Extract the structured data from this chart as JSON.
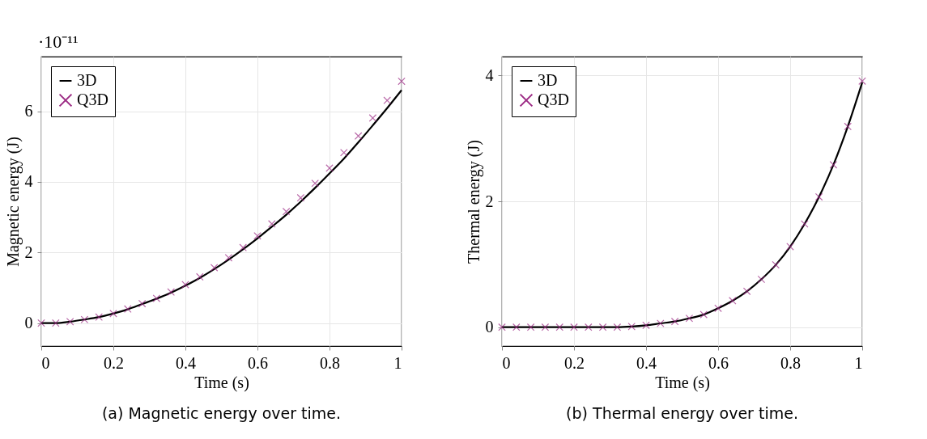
{
  "chart_data": [
    {
      "type": "line",
      "title": "(a) Magnetic energy over time.",
      "xlabel": "Time (s)",
      "ylabel": "Magnetic energy (J)",
      "annotations": [
        "·10⁻¹¹"
      ],
      "x": [
        0,
        0.04,
        0.08,
        0.12,
        0.16,
        0.2,
        0.24,
        0.28,
        0.32,
        0.36,
        0.4,
        0.44,
        0.48,
        0.52,
        0.56,
        0.6,
        0.64,
        0.68,
        0.72,
        0.76,
        0.8,
        0.84,
        0.88,
        0.92,
        0.96,
        1
      ],
      "series": [
        {
          "name": "3D",
          "color": "#000000",
          "type": "line",
          "values": [
            0,
            0,
            0.04,
            0.1,
            0.17,
            0.27,
            0.39,
            0.54,
            0.69,
            0.86,
            1.06,
            1.28,
            1.53,
            1.8,
            2.09,
            2.4,
            2.73,
            3.07,
            3.44,
            3.83,
            4.24,
            4.66,
            5.12,
            5.6,
            6.09,
            6.6
          ]
        },
        {
          "name": "Q3D",
          "color": "#9c2a84",
          "type": "scatter",
          "marker": "cross",
          "values": [
            0,
            0,
            0.04,
            0.1,
            0.17,
            0.27,
            0.4,
            0.55,
            0.7,
            0.88,
            1.09,
            1.31,
            1.57,
            1.85,
            2.14,
            2.47,
            2.81,
            3.16,
            3.55,
            3.96,
            4.39,
            4.83,
            5.3,
            5.81,
            6.31,
            6.85
          ]
        }
      ],
      "xlim": [
        0,
        1
      ],
      "xticks": [
        0,
        0.2,
        0.4,
        0.6,
        0.8,
        1
      ],
      "ylim": [
        -0.65,
        7.55
      ],
      "yticks": [
        0,
        2,
        4,
        6
      ],
      "grid": true,
      "legend": "top left"
    },
    {
      "type": "line",
      "title": "(b) Thermal energy over time.",
      "xlabel": "Time (s)",
      "ylabel": "Thermal energy (J)",
      "x": [
        0,
        0.04,
        0.08,
        0.12,
        0.16,
        0.2,
        0.24,
        0.28,
        0.32,
        0.36,
        0.4,
        0.44,
        0.48,
        0.52,
        0.56,
        0.6,
        0.64,
        0.68,
        0.72,
        0.76,
        0.8,
        0.84,
        0.88,
        0.92,
        0.96,
        1
      ],
      "series": [
        {
          "name": "3D",
          "color": "#000000",
          "type": "line",
          "values": [
            0,
            0,
            0,
            0,
            0,
            0,
            0,
            0,
            0,
            0.01,
            0.03,
            0.06,
            0.09,
            0.14,
            0.2,
            0.3,
            0.42,
            0.57,
            0.76,
            0.99,
            1.28,
            1.64,
            2.07,
            2.58,
            3.19,
            3.89
          ]
        },
        {
          "name": "Q3D",
          "color": "#9c2a84",
          "type": "scatter",
          "marker": "cross",
          "values": [
            0,
            0,
            0,
            0,
            0,
            0,
            0,
            0,
            0,
            0.01,
            0.03,
            0.06,
            0.09,
            0.14,
            0.2,
            0.3,
            0.42,
            0.57,
            0.76,
            0.99,
            1.28,
            1.64,
            2.07,
            2.58,
            3.19,
            3.91
          ]
        }
      ],
      "xlim": [
        0,
        1
      ],
      "xticks": [
        0,
        0.2,
        0.4,
        0.6,
        0.8,
        1
      ],
      "ylim": [
        -0.3,
        4.3
      ],
      "yticks": [
        0,
        2,
        4
      ],
      "grid": true,
      "legend": "top left"
    }
  ]
}
